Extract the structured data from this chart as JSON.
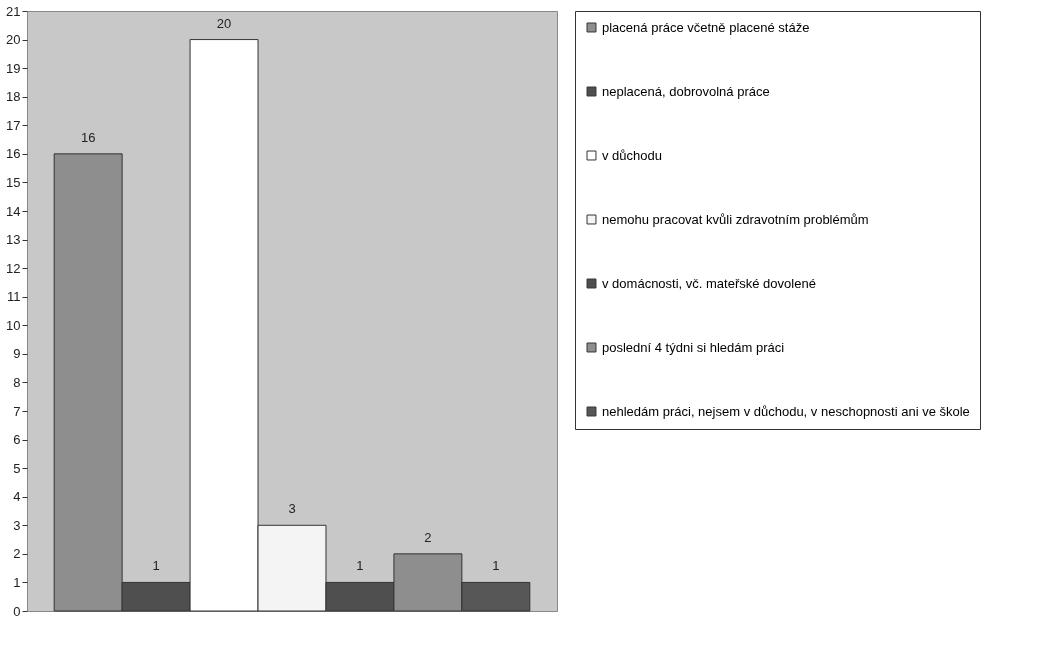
{
  "chart_data": {
    "type": "bar",
    "categories": [
      null
    ],
    "series": [
      {
        "name": "placená práce včetně placené stáže",
        "color": "#8e8e8e",
        "values": [
          16
        ]
      },
      {
        "name": "neplacená, dobrovolná práce",
        "color": "#4f4f4f",
        "values": [
          1
        ]
      },
      {
        "name": "v důchodu",
        "color": "#ffffff",
        "values": [
          20
        ]
      },
      {
        "name": "nemohu pracovat kvůli zdravotním problémům",
        "color": "#f4f4f4",
        "values": [
          3
        ]
      },
      {
        "name": "v domácnosti, vč. mateřské dovolené",
        "color": "#4f4f4f",
        "values": [
          1
        ]
      },
      {
        "name": "poslední 4 týdni si hledám práci",
        "color": "#8e8e8e",
        "values": [
          2
        ]
      },
      {
        "name": "nehledám práci, nejsem v důchodu, v neschopnosti ani ve škole",
        "color": "#575757",
        "values": [
          1
        ]
      }
    ],
    "ylim": [
      0,
      21
    ],
    "yticks": [
      0,
      1,
      2,
      3,
      4,
      5,
      6,
      7,
      8,
      9,
      10,
      11,
      12,
      13,
      14,
      15,
      16,
      17,
      18,
      19,
      20,
      21
    ],
    "data_labels": true,
    "grid": false,
    "legend": "right",
    "tick_labels": "y"
  }
}
